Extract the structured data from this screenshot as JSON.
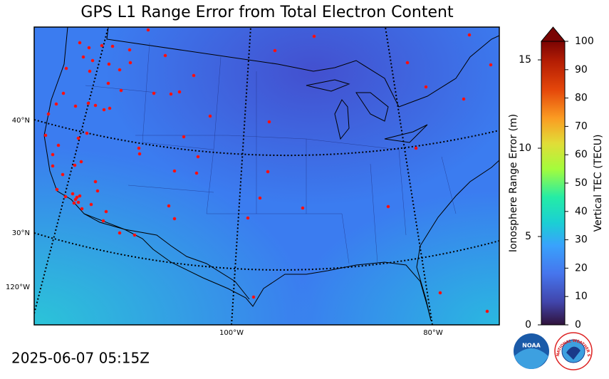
{
  "title": "GPS L1 Range Error from Total Electron Content",
  "map": {
    "lat_labels": [
      "40°N",
      "30°N"
    ],
    "lon_labels": [
      "120°W",
      "100°W",
      "80°W"
    ]
  },
  "colorbar": {
    "left_label": "Ionosphere Range Error (m)",
    "left_lim": [
      0,
      16.05
    ],
    "left_ticks": [
      0,
      5,
      10,
      15
    ],
    "right_label": "Vertical TEC (TECU)",
    "right_lim": [
      0,
      100
    ],
    "right_ticks": [
      0,
      10,
      20,
      30,
      40,
      50,
      60,
      70,
      80,
      90,
      100
    ]
  },
  "timestamp": "2025-06-07 05:15Z",
  "logos": {
    "noaa": "NOAA",
    "nws": "NATIONAL WEATHER SERVICE"
  }
}
